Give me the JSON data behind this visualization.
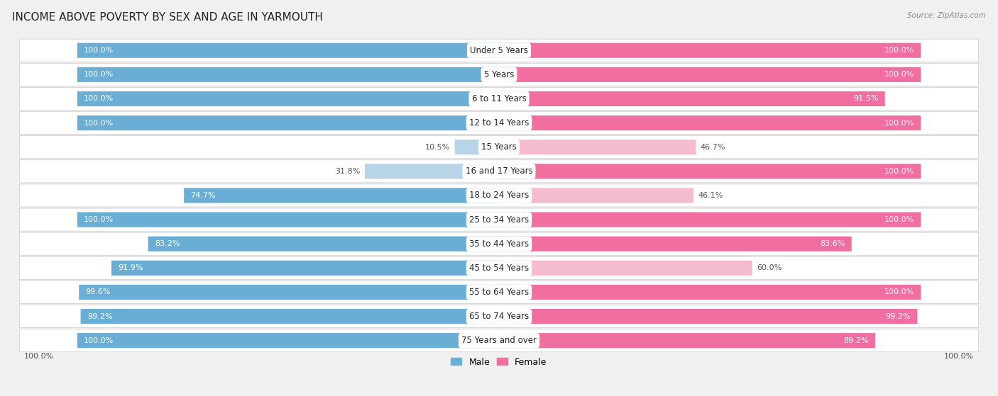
{
  "title": "INCOME ABOVE POVERTY BY SEX AND AGE IN YARMOUTH",
  "source": "Source: ZipAtlas.com",
  "categories": [
    "Under 5 Years",
    "5 Years",
    "6 to 11 Years",
    "12 to 14 Years",
    "15 Years",
    "16 and 17 Years",
    "18 to 24 Years",
    "25 to 34 Years",
    "35 to 44 Years",
    "45 to 54 Years",
    "55 to 64 Years",
    "65 to 74 Years",
    "75 Years and over"
  ],
  "male": [
    100.0,
    100.0,
    100.0,
    100.0,
    10.5,
    31.8,
    74.7,
    100.0,
    83.2,
    91.9,
    99.6,
    99.2,
    100.0
  ],
  "female": [
    100.0,
    100.0,
    91.5,
    100.0,
    46.7,
    100.0,
    46.1,
    100.0,
    83.6,
    60.0,
    100.0,
    99.2,
    89.2
  ],
  "male_color": "#6aaed6",
  "female_color": "#f06fa0",
  "male_light_color": "#b8d4e8",
  "female_light_color": "#f5bcd0",
  "background_color": "#f0f0f0",
  "row_bg_color": "#e8e8e8",
  "bar_white_bg": "#ffffff",
  "title_fontsize": 11,
  "label_fontsize": 8.5,
  "value_fontsize": 8,
  "max_val": 100.0,
  "male_threshold": 70,
  "female_threshold": 70
}
